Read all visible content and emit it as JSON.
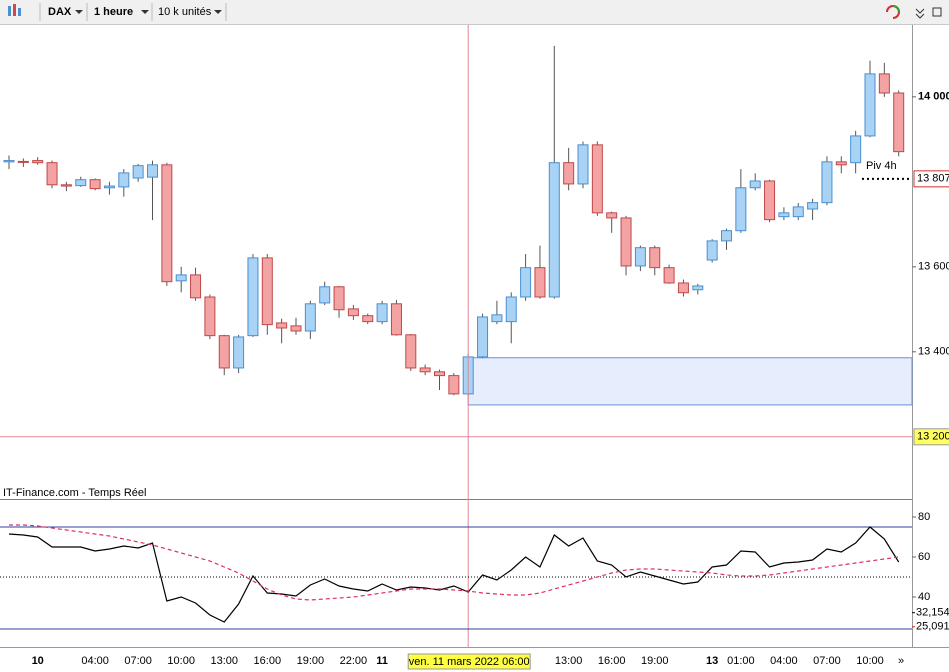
{
  "toolbar": {
    "symbol": "DAX",
    "interval": "1 heure",
    "size": "10 k unités"
  },
  "chart_data": [
    {
      "type": "candlestick",
      "source": "IT-Finance.com - Temps Réel",
      "annotation": "Piv 4h",
      "categories": [
        null,
        null,
        "10",
        null,
        null,
        null,
        "04:00",
        null,
        null,
        "07:00",
        null,
        null,
        "10:00",
        null,
        null,
        "13:00",
        null,
        null,
        "16:00",
        null,
        null,
        "19:00",
        null,
        null,
        "22:00",
        null,
        "11",
        null,
        null,
        null,
        null,
        null,
        "ven. 11 mars 2022 06:00",
        null,
        null,
        null,
        null,
        null,
        null,
        "13:00",
        null,
        null,
        "16:00",
        null,
        null,
        "19:00",
        null,
        null,
        null,
        "13",
        null,
        "01:00",
        null,
        null,
        "04:00",
        null,
        null,
        "07:00",
        null,
        null,
        "10:00",
        null,
        null
      ],
      "open": [
        13847,
        13848,
        13850,
        13845,
        13793,
        13791,
        13805,
        13786,
        13788,
        13809,
        13811,
        13840,
        13567,
        13581,
        13529,
        13438,
        13362,
        13438,
        13621,
        13468,
        13461,
        13449,
        13515,
        13553,
        13501,
        13485,
        13471,
        13513,
        13440,
        13362,
        13353,
        13344,
        13301,
        13388,
        13471,
        13471,
        13529,
        13598,
        13529,
        13845,
        13795,
        13887,
        13727,
        13715,
        13602,
        13645,
        13598,
        13562,
        13546,
        13616,
        13661,
        13685,
        13786,
        13802,
        13718,
        13718,
        13736,
        13751,
        13847,
        13845,
        13908,
        14054,
        14009
      ],
      "high": [
        13862,
        13855,
        13858,
        13850,
        13800,
        13812,
        13808,
        13800,
        13830,
        13842,
        13850,
        13845,
        13600,
        13598,
        13535,
        13440,
        13440,
        13630,
        13630,
        13478,
        13480,
        13520,
        13565,
        13555,
        13510,
        13490,
        13520,
        13522,
        13442,
        13370,
        13358,
        13350,
        13395,
        13490,
        13520,
        13540,
        13630,
        13650,
        14120,
        13880,
        13895,
        13895,
        13730,
        13720,
        13650,
        13650,
        13605,
        13570,
        13560,
        13665,
        13690,
        13830,
        13820,
        13805,
        13740,
        13750,
        13760,
        13860,
        13860,
        13920,
        14085,
        14080,
        14015
      ],
      "low": [
        13830,
        13835,
        13840,
        13785,
        13778,
        13788,
        13780,
        13770,
        13765,
        13800,
        13710,
        13555,
        13540,
        13520,
        13430,
        13345,
        13350,
        13435,
        13440,
        13420,
        13440,
        13430,
        13510,
        13480,
        13475,
        13465,
        13465,
        13438,
        13355,
        13345,
        13310,
        13298,
        13298,
        13385,
        13465,
        13420,
        13520,
        13525,
        13525,
        13780,
        13785,
        13720,
        13680,
        13580,
        13590,
        13580,
        13560,
        13530,
        13535,
        13610,
        13640,
        13680,
        13780,
        13705,
        13710,
        13710,
        13710,
        13745,
        13820,
        13820,
        13905,
        14000,
        13860
      ],
      "close": [
        13850,
        13847,
        13845,
        13793,
        13790,
        13805,
        13784,
        13790,
        13821,
        13838,
        13840,
        13565,
        13581,
        13527,
        13438,
        13362,
        13435,
        13621,
        13464,
        13456,
        13449,
        13513,
        13553,
        13499,
        13485,
        13471,
        13513,
        13440,
        13362,
        13353,
        13344,
        13301,
        13388,
        13482,
        13487,
        13529,
        13598,
        13529,
        13845,
        13795,
        13887,
        13727,
        13715,
        13602,
        13645,
        13598,
        13562,
        13539,
        13555,
        13661,
        13685,
        13786,
        13802,
        13711,
        13727,
        13741,
        13751,
        13847,
        13840,
        13908,
        14054,
        14009,
        13871
      ],
      "up_color": "#a9d3f5",
      "down_color": "#f3a3a3",
      "zone": [
        13275,
        13386
      ],
      "ylim": [
        13056,
        14169
      ],
      "yticks": [
        {
          "value": 14000,
          "label": "14 000"
        },
        {
          "value": 13600,
          "label": "13 600"
        },
        {
          "value": 13400,
          "label": "13 400"
        }
      ],
      "last_price": {
        "value": 13807,
        "label": "13 807"
      },
      "crosshair": {
        "category": 32,
        "value": 13200,
        "label": "13 200"
      }
    },
    {
      "type": "line",
      "series": [
        {
          "color": "#000000",
          "values": [
            71.5,
            71,
            70,
            65,
            65,
            65,
            63,
            64,
            65.5,
            64.5,
            67,
            38,
            40,
            37,
            31,
            27.5,
            36.5,
            50.5,
            42,
            41.5,
            40.5,
            46,
            49,
            45.5,
            44,
            43,
            46.5,
            43.5,
            45,
            44.5,
            43.5,
            45.5,
            42.5,
            51,
            48.5,
            53.5,
            60,
            55,
            71,
            65.5,
            69.5,
            58,
            56,
            50,
            52.5,
            50.5,
            48.5,
            46.5,
            47.5,
            55,
            56,
            63,
            62.5,
            55,
            57,
            57.5,
            58.5,
            64,
            62.5,
            67,
            75,
            69,
            57.5
          ]
        },
        {
          "color": "#e0305a",
          "dashed": true,
          "values": [
            76,
            76,
            75.5,
            74.5,
            73.5,
            72.5,
            71.5,
            70.5,
            69,
            67.5,
            66,
            64,
            62,
            60,
            58,
            55,
            52,
            48,
            44,
            41,
            39,
            38.5,
            39,
            39.5,
            40,
            41,
            42,
            43,
            44,
            44,
            44,
            43.5,
            43,
            42,
            41.5,
            41,
            41,
            42,
            44,
            46,
            48,
            50,
            52,
            53.5,
            54,
            54,
            53.5,
            53,
            52.5,
            52,
            51,
            50.5,
            50.5,
            51,
            52,
            53,
            54,
            55,
            56,
            57,
            58,
            59,
            60
          ]
        }
      ],
      "bands": [
        75,
        24
      ],
      "midline": 50,
      "levels": [
        {
          "value": 32.154,
          "label": "32,154",
          "color": "#000000"
        },
        {
          "value": 25.091,
          "label": "25,091",
          "color": "#d02020"
        }
      ],
      "ylim": [
        16,
        88.5
      ],
      "yticks": [
        80,
        60,
        40
      ]
    }
  ]
}
